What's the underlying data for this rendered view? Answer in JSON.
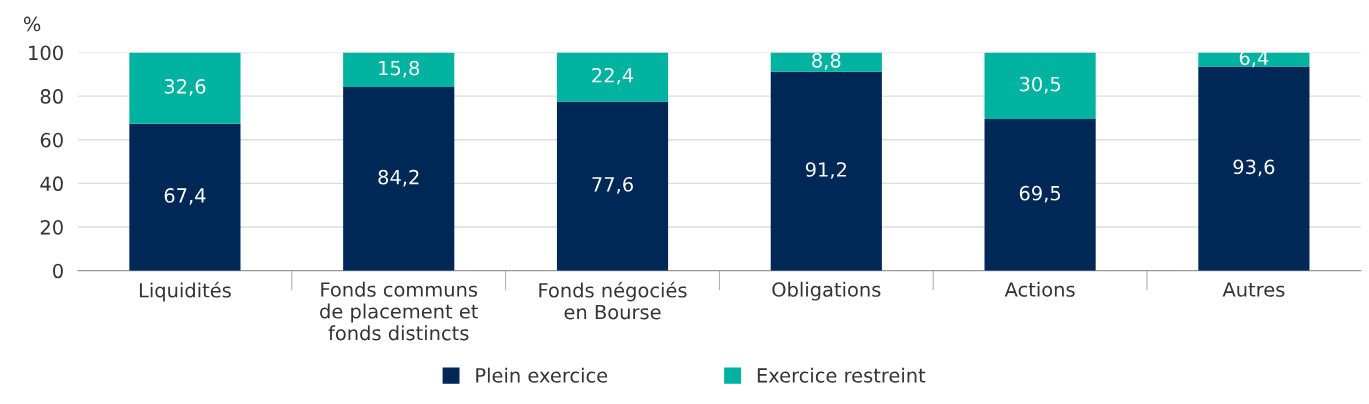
{
  "chart_data": {
    "type": "bar",
    "stacked": true,
    "ylabel": "%",
    "categories": [
      "Liquidités",
      "Fonds communs\nde placement et\nfonds distincts",
      "Fonds négociés\nen Bourse",
      "Obligations",
      "Actions",
      "Autres"
    ],
    "series": [
      {
        "name": "Plein exercice",
        "color": "#002856",
        "values": [
          67.4,
          84.2,
          77.6,
          91.2,
          69.5,
          93.6
        ],
        "value_labels": [
          "67,4",
          "84,2",
          "77,6",
          "91,2",
          "69,5",
          "93,6"
        ]
      },
      {
        "name": "Exercice restreint",
        "color": "#00b2a0",
        "values": [
          32.6,
          15.8,
          22.4,
          8.8,
          30.5,
          6.4
        ],
        "value_labels": [
          "32,6",
          "15,8",
          "22,4",
          "8,8",
          "30,5",
          "6,4"
        ]
      }
    ],
    "ylim": [
      0,
      100
    ],
    "yticks": [
      0,
      20,
      40,
      60,
      80,
      100
    ],
    "grid": "y",
    "legend": "bottom"
  }
}
